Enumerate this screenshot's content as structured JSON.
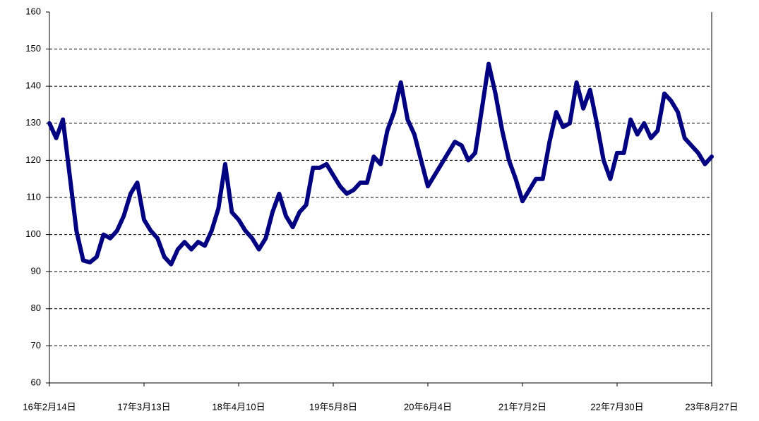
{
  "chart_data": {
    "type": "line",
    "categories": [
      "16年2月14日",
      null,
      null,
      null,
      null,
      null,
      null,
      null,
      null,
      null,
      null,
      null,
      null,
      null,
      "17年3月13日",
      null,
      null,
      null,
      null,
      null,
      null,
      null,
      null,
      null,
      null,
      null,
      null,
      null,
      "18年4月10日",
      null,
      null,
      null,
      null,
      null,
      null,
      null,
      null,
      null,
      null,
      null,
      null,
      null,
      "19年5月8日",
      null,
      null,
      null,
      null,
      null,
      null,
      null,
      null,
      null,
      null,
      null,
      null,
      null,
      "20年6月4日",
      null,
      null,
      null,
      null,
      null,
      null,
      null,
      null,
      null,
      null,
      null,
      null,
      null,
      "21年7月2日",
      null,
      null,
      null,
      null,
      null,
      null,
      null,
      null,
      null,
      null,
      null,
      null,
      null,
      "22年7月30日",
      null,
      null,
      null,
      null,
      null,
      null,
      null,
      null,
      null,
      null,
      null,
      null,
      null,
      "23年8月27日"
    ],
    "series": [
      {
        "name": null,
        "color": "#000080",
        "values": [
          130,
          126,
          131,
          116,
          101,
          93,
          92.5,
          94,
          100,
          99,
          101,
          105,
          111,
          114,
          104,
          101,
          99,
          94,
          92,
          96,
          98,
          96,
          98,
          97,
          101,
          107,
          119,
          106,
          104,
          101,
          99,
          96,
          99,
          106,
          111,
          105,
          102,
          106,
          108,
          118,
          118,
          119,
          116,
          113,
          111,
          112,
          114,
          114,
          121,
          119,
          128,
          133,
          141,
          131,
          127,
          120,
          113,
          116,
          119,
          122,
          125,
          124,
          120,
          122,
          134,
          146,
          138,
          128,
          120,
          115,
          109,
          112,
          115,
          115,
          125,
          133,
          129,
          130,
          141,
          134,
          139,
          130,
          120,
          115,
          122,
          122,
          131,
          127,
          130,
          126,
          128,
          138,
          136,
          133,
          126,
          124,
          122,
          119,
          121
        ]
      }
    ],
    "ylim": [
      60,
      160
    ],
    "yticks": [
      60,
      70,
      80,
      90,
      100,
      110,
      120,
      130,
      140,
      150,
      160
    ],
    "grid": true
  }
}
